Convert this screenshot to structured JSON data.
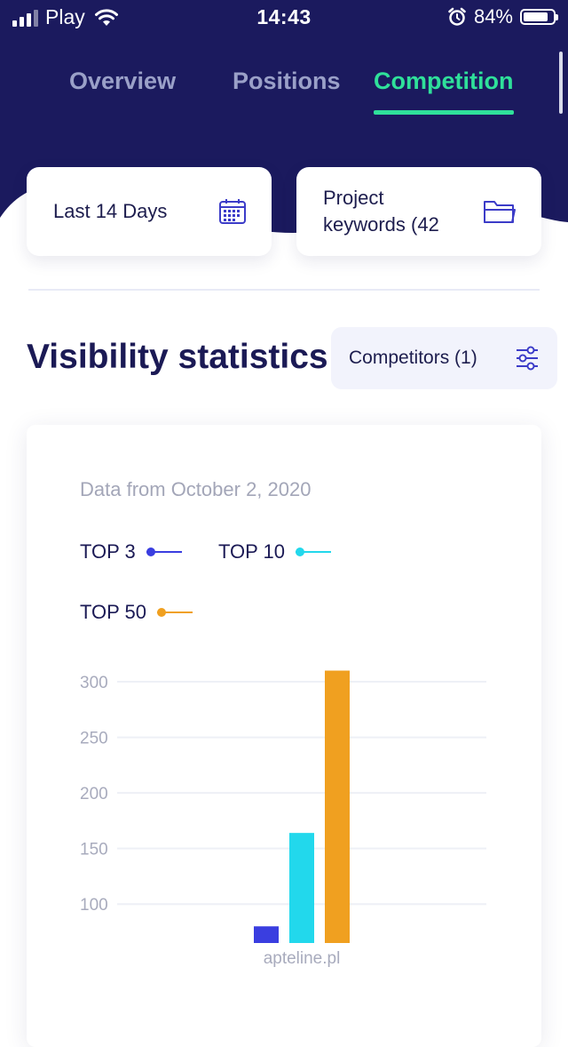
{
  "status_bar": {
    "carrier": "Play",
    "time": "14:43",
    "battery": "84%",
    "battery_level": 0.84
  },
  "tabs": [
    {
      "label": "Overview",
      "active": false
    },
    {
      "label": "Positions",
      "active": false
    },
    {
      "label": "Competition",
      "active": true
    }
  ],
  "filters": {
    "date_range": "Last 14 Days",
    "keywords_line1": "Project",
    "keywords_line2": "keywords (42"
  },
  "section": {
    "title": "Visibility statistics",
    "competitors_button": "Competitors (1)"
  },
  "chart_card": {
    "data_from": "Data from October 2, 2020"
  },
  "colors": {
    "header_bg": "#1b1a5e",
    "accent_green": "#2fe09a",
    "top3": "#3a3ee0",
    "top10": "#22d8ec",
    "top50": "#f0a020"
  },
  "chart_data": {
    "type": "bar",
    "categories": [
      "apteline.pl"
    ],
    "series": [
      {
        "name": "TOP 3",
        "values": [
          80
        ],
        "color": "#3a3ee0"
      },
      {
        "name": "TOP 10",
        "values": [
          164
        ],
        "color": "#22d8ec"
      },
      {
        "name": "TOP 50",
        "values": [
          310
        ],
        "color": "#f0a020"
      }
    ],
    "yticks": [
      100,
      150,
      200,
      250,
      300
    ],
    "ylim": [
      65,
      320
    ],
    "grid": true,
    "legend_position": "top-left",
    "title": "",
    "xlabel": "",
    "ylabel": ""
  }
}
